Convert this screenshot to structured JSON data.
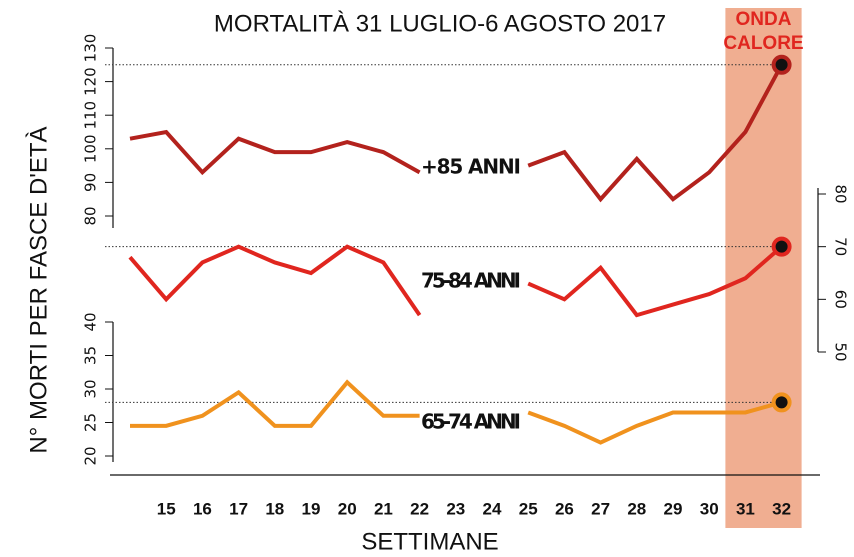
{
  "chart_data": {
    "type": "line",
    "title": "MORTALITÀ 31 LUGLIO-6 AGOSTO 2017",
    "xlabel": "SETTIMANE",
    "ylabel": "N° MORTI PER FASCE D'ETÀ",
    "categories": [
      null,
      "15",
      "16",
      "17",
      "18",
      "19",
      "20",
      "21",
      "22",
      "23",
      "24",
      "25",
      "26",
      "27",
      "28",
      "29",
      "30",
      "31",
      "32"
    ],
    "ylim": [
      80,
      130
    ],
    "yticks": [
      80,
      90,
      100,
      110,
      120,
      130
    ],
    "y2lim": [
      50,
      80
    ],
    "y2ticks": [
      50,
      60,
      70,
      80
    ],
    "y3lim": [
      20,
      40
    ],
    "y3ticks": [
      20,
      25,
      30,
      35,
      40
    ],
    "highlight": {
      "label": [
        "ONDA",
        "CALORE"
      ],
      "from": "31",
      "to": "32",
      "color": "#f0ae91"
    },
    "series": [
      {
        "name": "+85  ANNI",
        "color": "#b3221d",
        "axis": "y",
        "values": [
          103,
          105,
          93,
          103,
          99,
          99,
          102,
          99,
          93,
          null,
          null,
          95,
          99,
          85,
          97,
          85,
          93,
          105,
          125
        ]
      },
      {
        "name": "75-84 ANNI",
        "color": "#e0261f",
        "axis": "y2",
        "values": [
          68,
          60,
          67,
          70,
          67,
          65,
          70,
          67,
          57,
          null,
          null,
          63,
          60,
          66,
          57,
          59,
          61,
          64,
          70
        ]
      },
      {
        "name": "65-74 ANNI",
        "color": "#f0921e",
        "axis": "y3",
        "values": [
          24.5,
          24.5,
          26,
          29.5,
          24.5,
          24.5,
          31,
          26,
          26,
          null,
          null,
          26.5,
          24.5,
          22,
          24.5,
          26.5,
          26.5,
          26.5,
          28
        ]
      }
    ]
  }
}
